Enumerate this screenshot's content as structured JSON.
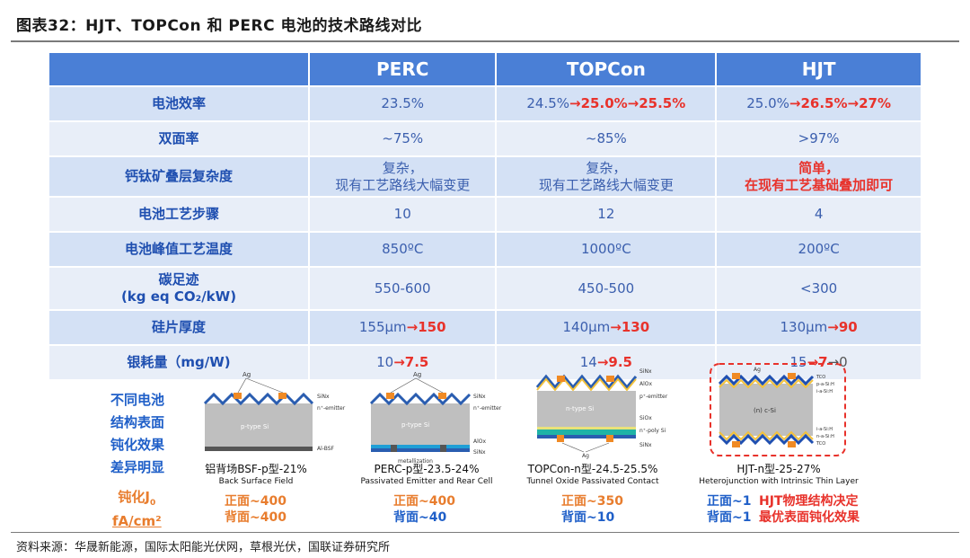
{
  "figure_title": "图表32：HJT、TOPCon 和 PERC 电池的技术路线对比",
  "table": {
    "headers": [
      "",
      "PERC",
      "TOPCon",
      "HJT"
    ],
    "rows": [
      {
        "label": "电池效率",
        "perc": "23.5%",
        "topcon_a": "24.5%",
        "topcon_b": "→25.0%→25.5%",
        "hjt_a": "25.0%",
        "hjt_b": "→26.5%→27%"
      },
      {
        "label": "双面率",
        "perc": "~75%",
        "topcon": "~85%",
        "hjt": ">97%"
      },
      {
        "label": "钙钛矿叠层复杂度",
        "perc_l1": "复杂，",
        "perc_l2": "现有工艺路线大幅变更",
        "topcon_l1": "复杂，",
        "topcon_l2": "现有工艺路线大幅变更",
        "hjt_l1": "简单，",
        "hjt_l2": "在现有工艺基础叠加即可"
      },
      {
        "label": "电池工艺步骤",
        "perc": "10",
        "topcon": "12",
        "hjt": "4"
      },
      {
        "label": "电池峰值工艺温度",
        "perc": "850ºC",
        "topcon": "1000ºC",
        "hjt": "200ºC"
      },
      {
        "label_l1": "碳足迹",
        "label_l2": "(kg eq CO₂/kW)",
        "perc": "550-600",
        "topcon": "450-500",
        "hjt": "<300"
      },
      {
        "label": "硅片厚度",
        "perc_a": "155μm",
        "perc_b": "→150",
        "topcon_a": "140μm",
        "topcon_b": "→130",
        "hjt_a": "130μm",
        "hjt_b": "→90"
      },
      {
        "label": "银耗量（mg/W)",
        "perc_a": "10",
        "perc_b": "→7.5",
        "topcon_a": "14",
        "topcon_b": "→9.5",
        "hjt_a": "15",
        "hjt_b": "→7",
        "hjt_c": "→0"
      }
    ]
  },
  "diagram": {
    "side_note": [
      "不同电池",
      "结构表面",
      "钝化效果",
      "差异明显"
    ],
    "ff_label_l1": "钝化J",
    "ff_label_sub": "0",
    "ff_label_l2": "fA/cm²",
    "cells": [
      {
        "caption": "铝背场BSF-p型-21%",
        "caption_sub": "Back Surface Field",
        "front": "正面~400",
        "back": "背面~400",
        "labels": [
          "Ag",
          "SiNx",
          "n⁺-emitter",
          "p-type Si",
          "Al-BSF"
        ]
      },
      {
        "caption": "PERC-p型-23.5-24%",
        "caption_sub": "Passivated Emitter and Rear Cell",
        "front": "正面~400",
        "back": "背面~40",
        "labels": [
          "Ag",
          "SiNx",
          "n⁺-emitter",
          "p-type Si",
          "AlOx",
          "SiNx",
          "metallization"
        ]
      },
      {
        "caption": "TOPCon-n型-24.5-25.5%",
        "caption_sub": "Tunnel Oxide Passivated Contact",
        "front": "正面~350",
        "back": "背面~10",
        "labels": [
          "SiNx",
          "AlOx",
          "p⁺-emitter",
          "n-type Si",
          "SiOx",
          "n⁺-poly Si",
          "SiNx",
          "Ag"
        ]
      },
      {
        "caption": "HJT-n型-25-27%",
        "caption_sub": "Heterojunction with Intrinsic Thin Layer",
        "front": "正面~1",
        "back": "背面~1",
        "note_l1": "HJT物理结构决定",
        "note_l2": "最优表面钝化效果",
        "labels": [
          "Ag",
          "TCO",
          "p-a-Si:H",
          "i-a-Si:H",
          "(n) c-Si",
          "i-a-Si:H",
          "n-a-Si:H",
          "TCO"
        ]
      }
    ]
  },
  "source": "资料来源：华晟新能源，国际太阳能光伏网，草根光伏，国联证券研究所",
  "colors": {
    "header_blue": "#4a7fd6",
    "row_a": "#d4e1f5",
    "row_b": "#e8eef8",
    "highlight_red": "#e8322b",
    "label_blue": "#1f4fb0",
    "ff_orange": "#e87d2e"
  }
}
